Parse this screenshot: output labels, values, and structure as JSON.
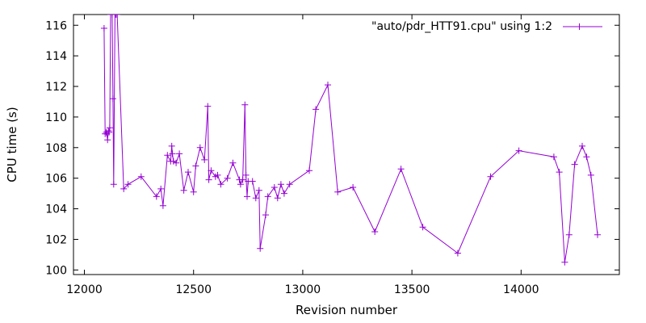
{
  "chart_data": {
    "type": "line",
    "title": "",
    "xlabel": "Revision number",
    "ylabel": "CPU time (s)",
    "xlim": [
      11950,
      14450
    ],
    "ylim": [
      99.7,
      116.7
    ],
    "x_ticks": [
      12000,
      12500,
      13000,
      13500,
      14000
    ],
    "y_ticks": [
      100,
      102,
      104,
      106,
      108,
      110,
      112,
      114,
      116
    ],
    "grid": false,
    "legend_position": "top-right",
    "series": [
      {
        "name": "\"auto/pdr_HTT91.cpu\" using 1:2",
        "color": "#9400d3",
        "marker": "plus",
        "points": [
          [
            12090,
            115.8
          ],
          [
            12095,
            108.9
          ],
          [
            12100,
            109.0
          ],
          [
            12103,
            108.9
          ],
          [
            12106,
            108.5
          ],
          [
            12110,
            109.1
          ],
          [
            12113,
            109.0
          ],
          [
            12116,
            109.3
          ],
          [
            12120,
            116.7
          ],
          [
            12127,
            116.7
          ],
          [
            12131,
            111.2
          ],
          [
            12134,
            105.6
          ],
          [
            12140,
            116.7
          ],
          [
            12145,
            116.7
          ],
          [
            12150,
            116.7
          ],
          [
            12180,
            105.3
          ],
          [
            12200,
            105.6
          ],
          [
            12260,
            106.1
          ],
          [
            12330,
            104.8
          ],
          [
            12350,
            105.3
          ],
          [
            12360,
            104.2
          ],
          [
            12380,
            107.5
          ],
          [
            12395,
            107.1
          ],
          [
            12400,
            108.1
          ],
          [
            12403,
            107.6
          ],
          [
            12408,
            107.1
          ],
          [
            12420,
            107.0
          ],
          [
            12435,
            107.6
          ],
          [
            12455,
            105.2
          ],
          [
            12475,
            106.4
          ],
          [
            12500,
            105.1
          ],
          [
            12510,
            106.8
          ],
          [
            12530,
            108.0
          ],
          [
            12550,
            107.2
          ],
          [
            12565,
            110.7
          ],
          [
            12570,
            105.9
          ],
          [
            12580,
            106.5
          ],
          [
            12600,
            106.1
          ],
          [
            12610,
            106.2
          ],
          [
            12625,
            105.6
          ],
          [
            12655,
            106.0
          ],
          [
            12680,
            107.0
          ],
          [
            12710,
            105.9
          ],
          [
            12715,
            105.6
          ],
          [
            12725,
            105.9
          ],
          [
            12735,
            110.8
          ],
          [
            12740,
            106.2
          ],
          [
            12745,
            104.8
          ],
          [
            12750,
            105.8
          ],
          [
            12770,
            105.8
          ],
          [
            12785,
            104.7
          ],
          [
            12800,
            105.2
          ],
          [
            12805,
            101.4
          ],
          [
            12830,
            103.6
          ],
          [
            12840,
            104.8
          ],
          [
            12870,
            105.4
          ],
          [
            12885,
            104.7
          ],
          [
            12900,
            105.6
          ],
          [
            12915,
            105.0
          ],
          [
            12940,
            105.6
          ],
          [
            13030,
            106.5
          ],
          [
            13060,
            110.5
          ],
          [
            13115,
            112.1
          ],
          [
            13160,
            105.1
          ],
          [
            13230,
            105.4
          ],
          [
            13330,
            102.5
          ],
          [
            13450,
            106.6
          ],
          [
            13550,
            102.8
          ],
          [
            13710,
            101.1
          ],
          [
            13860,
            106.1
          ],
          [
            13990,
            107.8
          ],
          [
            14150,
            107.4
          ],
          [
            14175,
            106.4
          ],
          [
            14200,
            100.5
          ],
          [
            14220,
            102.3
          ],
          [
            14245,
            106.9
          ],
          [
            14280,
            108.1
          ],
          [
            14300,
            107.4
          ],
          [
            14320,
            106.2
          ],
          [
            14350,
            102.3
          ]
        ]
      }
    ]
  }
}
